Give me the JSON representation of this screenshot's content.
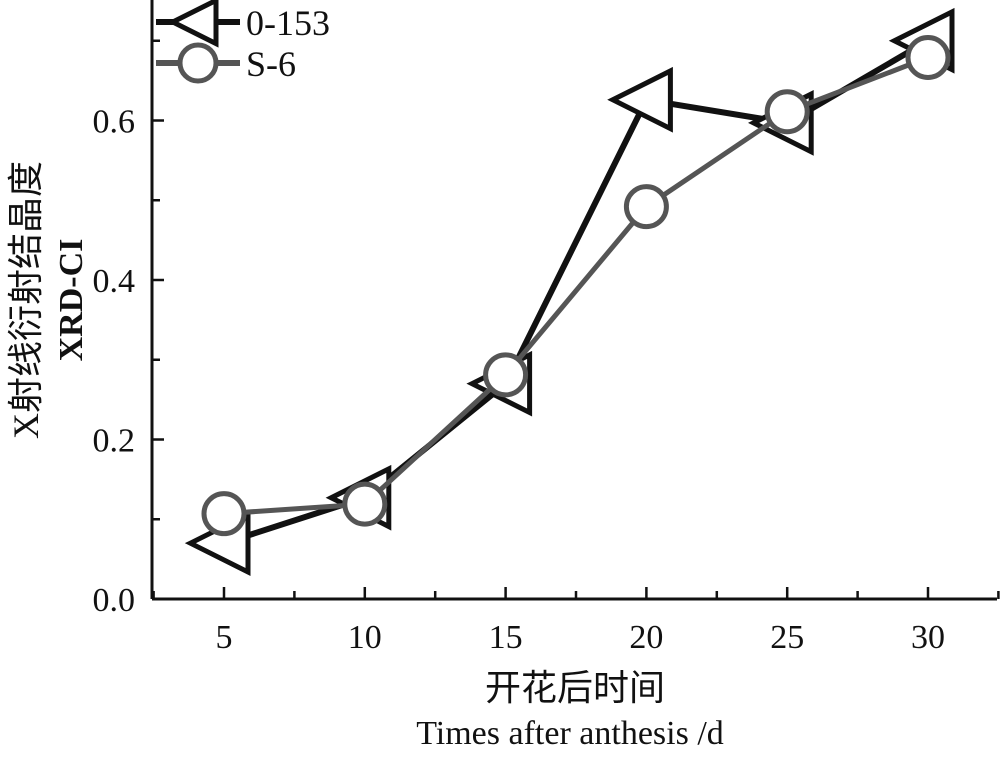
{
  "chart_data": {
    "type": "line",
    "xlabel_cn": "开花后时间",
    "xlabel": "Times after anthesis /d",
    "ylabel_cn": "X射线衍射结晶度",
    "ylabel": "XRD-CI",
    "x": [
      5,
      10,
      15,
      20,
      25,
      30
    ],
    "xticks": [
      "5",
      "10",
      "15",
      "20",
      "25",
      "30"
    ],
    "yticks": [
      "0.0",
      "0.2",
      "0.4",
      "0.6"
    ],
    "xlim": [
      2.5,
      32.5
    ],
    "ylim": [
      0,
      0.74
    ],
    "grid": false,
    "legend_position": "top-left",
    "series": [
      {
        "name": "0-153",
        "marker": "triangle-left",
        "color": "#111111",
        "values": [
          0.07,
          0.127,
          0.27,
          0.626,
          0.597,
          0.7
        ]
      },
      {
        "name": "S-6",
        "marker": "circle",
        "color": "#555555",
        "values": [
          0.107,
          0.119,
          0.281,
          0.492,
          0.611,
          0.679
        ]
      }
    ]
  }
}
